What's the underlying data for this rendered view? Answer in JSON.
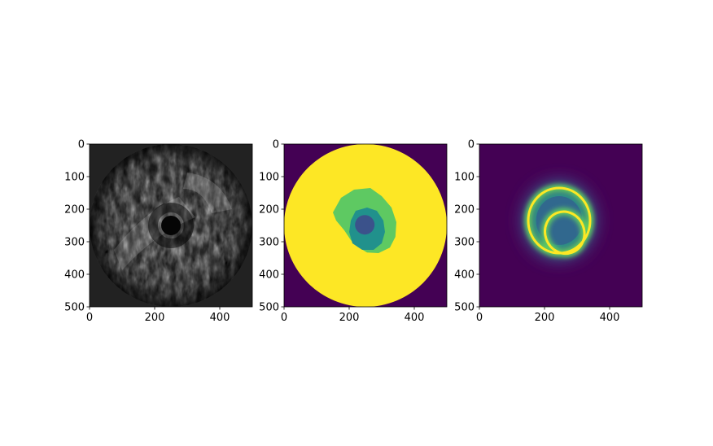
{
  "figure": {
    "background": "#ffffff"
  },
  "chart_data": [
    {
      "type": "heatmap",
      "content": "ivus grayscale ultrasound frame",
      "colormap": "gray",
      "xlim": [
        0,
        500
      ],
      "ylim": [
        500,
        0
      ],
      "x_ticks": [
        0,
        200,
        400
      ],
      "y_ticks": [
        0,
        100,
        200,
        300,
        400,
        500
      ],
      "x_tick_labels": [
        "0",
        "200",
        "400"
      ],
      "y_tick_labels": [
        "0",
        "100",
        "200",
        "300",
        "400",
        "500"
      ],
      "title": "",
      "xlabel": "",
      "ylabel": "",
      "catheter_center": [
        250,
        250
      ],
      "catheter_radius": 30,
      "field_of_view_radius": 250,
      "outside_color": "#222222"
    },
    {
      "type": "heatmap",
      "content": "segmentation label map",
      "colormap": "viridis",
      "xlim": [
        0,
        500
      ],
      "ylim": [
        500,
        0
      ],
      "x_ticks": [
        0,
        200,
        400
      ],
      "y_ticks": [
        0,
        100,
        200,
        300,
        400,
        500
      ],
      "x_tick_labels": [
        "0",
        "200",
        "400"
      ],
      "y_tick_labels": [
        "0",
        "100",
        "200",
        "300",
        "400",
        "500"
      ],
      "title": "",
      "xlabel": "",
      "ylabel": "",
      "regions": [
        {
          "label": 0,
          "color": "#440154",
          "extent": "outside imaging circle"
        },
        {
          "label": 3,
          "color": "#fde725",
          "extent": "circle center (250,250) radius 250"
        },
        {
          "label": 2,
          "color": "#5ec962",
          "extent": "vessel region, x≈150–345, y≈135–335"
        },
        {
          "label": 1,
          "color": "#21918c",
          "extent": "lumen region, x≈200–310, y≈195–325"
        },
        {
          "label": 1.5,
          "color": "#3b528b",
          "extent": "catheter, center (248,248) radius 30"
        }
      ]
    },
    {
      "type": "heatmap",
      "content": "distance / boundary map",
      "colormap": "viridis",
      "xlim": [
        0,
        500
      ],
      "ylim": [
        500,
        0
      ],
      "x_ticks": [
        0,
        200,
        400
      ],
      "y_ticks": [
        0,
        100,
        200,
        300,
        400,
        500
      ],
      "x_tick_labels": [
        "0",
        "200",
        "400"
      ],
      "y_tick_labels": [
        "0",
        "100",
        "200",
        "300",
        "400",
        "500"
      ],
      "title": "",
      "xlabel": "",
      "ylabel": "",
      "background_color": "#440154",
      "peak_color": "#fde725",
      "contours": [
        {
          "name": "outer boundary",
          "center": [
            245,
            235
          ],
          "rx": 95,
          "ry": 100
        },
        {
          "name": "inner boundary",
          "center": [
            262,
            272
          ],
          "rx": 60,
          "ry": 65
        }
      ]
    }
  ]
}
